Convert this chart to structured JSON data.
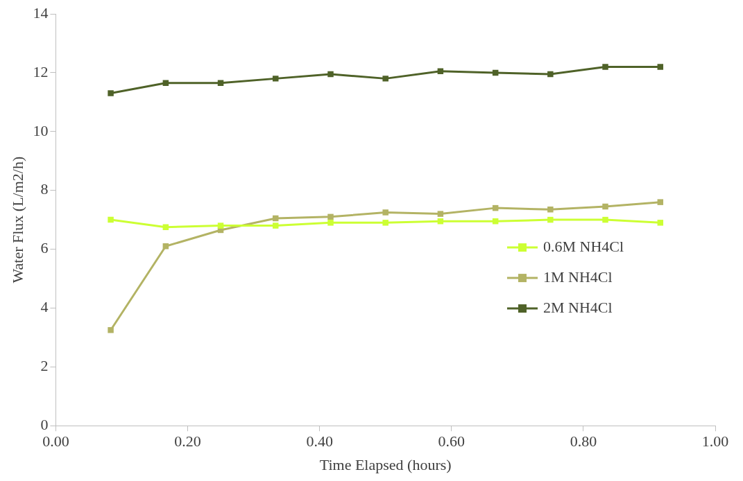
{
  "chart_data": {
    "type": "line",
    "xlabel": "Time Elapsed (hours)",
    "ylabel": "Water Flux (L/m2/h)",
    "x": [
      0.0833,
      0.1667,
      0.25,
      0.3333,
      0.4167,
      0.5,
      0.5833,
      0.6667,
      0.75,
      0.8333,
      0.9167
    ],
    "series": [
      {
        "name": "0.6M NH4Cl",
        "color": "#ccff33",
        "values": [
          7.0,
          6.75,
          6.8,
          6.8,
          6.9,
          6.9,
          6.95,
          6.95,
          7.0,
          7.0,
          6.9
        ]
      },
      {
        "name": "1M NH4Cl",
        "color": "#b3b364",
        "values": [
          3.25,
          6.1,
          6.65,
          7.05,
          7.1,
          7.25,
          7.2,
          7.4,
          7.35,
          7.45,
          7.6
        ]
      },
      {
        "name": "2M NH4Cl",
        "color": "#4f6228",
        "values": [
          11.3,
          11.65,
          11.65,
          11.8,
          11.95,
          11.8,
          12.05,
          12.0,
          11.95,
          12.2,
          12.2
        ]
      }
    ],
    "xlim": [
      0,
      1
    ],
    "xticks": [
      {
        "value": 0,
        "label": "0.00"
      },
      {
        "value": 0.2,
        "label": "0.20"
      },
      {
        "value": 0.4,
        "label": "0.40"
      },
      {
        "value": 0.6,
        "label": "0.60"
      },
      {
        "value": 0.8,
        "label": "0.80"
      },
      {
        "value": 1,
        "label": "1.00"
      }
    ],
    "ylim": [
      0,
      14
    ],
    "yticks": [
      0,
      2,
      4,
      6,
      8,
      10,
      12,
      14
    ],
    "grid": false,
    "legend": "right",
    "marker": "square",
    "line_style": "solid"
  }
}
